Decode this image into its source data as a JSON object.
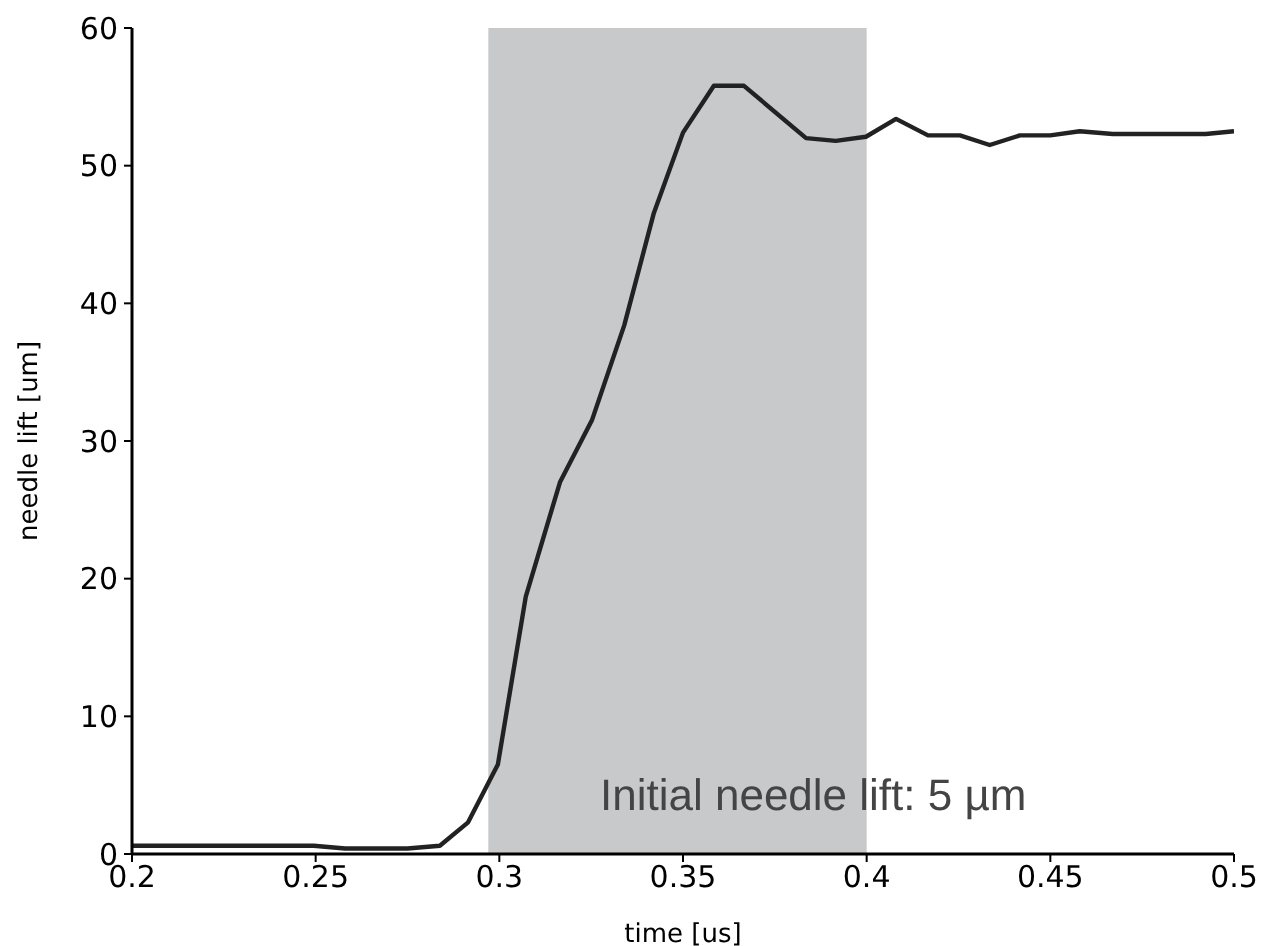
{
  "chart_data": {
    "type": "line",
    "xlabel": "time [us]",
    "ylabel": "needle lift [um]",
    "x": [
      0.2,
      0.2495,
      0.258,
      0.275,
      0.2838,
      0.2915,
      0.2996,
      0.3072,
      0.3165,
      0.3252,
      0.334,
      0.342,
      0.35,
      0.3584,
      0.3666,
      0.3835,
      0.3916,
      0.3998,
      0.408,
      0.4167,
      0.4254,
      0.4335,
      0.4417,
      0.45,
      0.458,
      0.467,
      0.4923,
      0.5
    ],
    "series": [
      {
        "color": "#222222",
        "values": [
          0.6,
          0.6,
          0.4,
          0.4,
          0.6,
          2.3,
          6.5,
          18.7,
          27,
          31.5,
          38.4,
          46.5,
          52.4,
          55.8,
          55.8,
          52,
          51.8,
          52.1,
          53.4,
          52.2,
          52.2,
          51.5,
          52.2,
          52.2,
          52.5,
          52.3,
          52.3,
          52.5
        ]
      }
    ],
    "xlim": [
      0.2,
      0.5
    ],
    "xticks": [
      0.2,
      0.25,
      0.3,
      0.35,
      0.4,
      0.45,
      0.5
    ],
    "ylim": [
      0,
      60
    ],
    "yticks": [
      0,
      10,
      20,
      30,
      40,
      50,
      60
    ],
    "bands": [
      {
        "axis": "x",
        "from": 0.297,
        "to": 0.4,
        "color": "#c8c9cb"
      }
    ],
    "annotations": [
      "Initial needle lift: 5 µm"
    ],
    "grid": false,
    "legend": false,
    "marker": "none",
    "line_style": "solid"
  }
}
